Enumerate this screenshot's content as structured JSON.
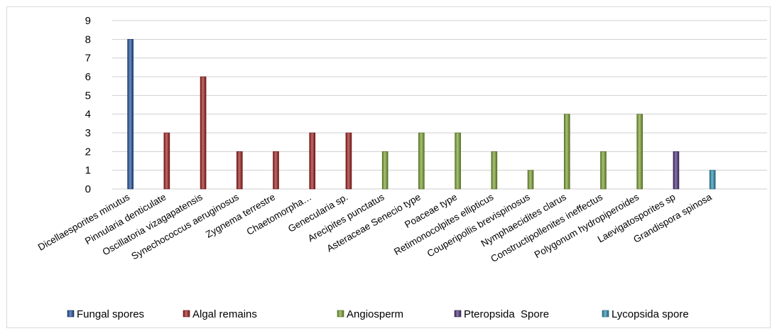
{
  "chart_data": {
    "type": "bar",
    "title": "",
    "xlabel": "",
    "ylabel": "",
    "ylim": [
      0,
      9
    ],
    "yticks": [
      "0",
      "1",
      "2",
      "3",
      "4",
      "5",
      "6",
      "7",
      "8",
      "9"
    ],
    "grid": true,
    "legend_position": "bottom",
    "series": [
      {
        "name": "Fungal spores",
        "color": "#1f4e9c",
        "values": [
          8,
          null,
          null,
          null,
          null,
          null,
          null,
          null,
          null,
          null,
          null,
          null,
          null,
          null,
          null,
          null,
          null,
          null
        ]
      },
      {
        "name": "Algal remains",
        "color": "#9e1c1c",
        "values": [
          null,
          3,
          6,
          2,
          2,
          3,
          3,
          null,
          null,
          null,
          null,
          null,
          null,
          null,
          null,
          null,
          null,
          null
        ]
      },
      {
        "name": "Angiosperm",
        "color": "#7aa130",
        "values": [
          null,
          null,
          null,
          null,
          null,
          null,
          null,
          2,
          3,
          3,
          2,
          1,
          4,
          2,
          4,
          null,
          null,
          null
        ]
      },
      {
        "name": "Pteropsida  Spore",
        "color": "#4b2f7a",
        "values": [
          null,
          null,
          null,
          null,
          null,
          null,
          null,
          null,
          null,
          null,
          null,
          null,
          null,
          null,
          null,
          2,
          null,
          null
        ]
      },
      {
        "name": "Lycopsida spore",
        "color": "#2a8fb0",
        "values": [
          null,
          null,
          null,
          null,
          null,
          null,
          null,
          null,
          null,
          null,
          null,
          null,
          null,
          null,
          null,
          null,
          1,
          null
        ]
      }
    ],
    "categories": [
      "Dicellaesporites minutus",
      "Pinnularia denticulate",
      "Oscillatoria vizagapatensis",
      "Synechococcus aeruginosus",
      "Zygnema terrestre",
      "Chaetomorpha…",
      "Genecularia sp.",
      "Arecipites punctatus",
      "Asteraceae Senecio type",
      "Poaceae type",
      "Retimonocolpites ellipticus",
      "Couperipollis brevispinosus",
      "Nymphaecidites clarus",
      "Constructipollenites ineffectus",
      "Polygonum hydropiperoides",
      "Laevigatosporites sp",
      "Grandispora spinosa",
      ""
    ]
  }
}
